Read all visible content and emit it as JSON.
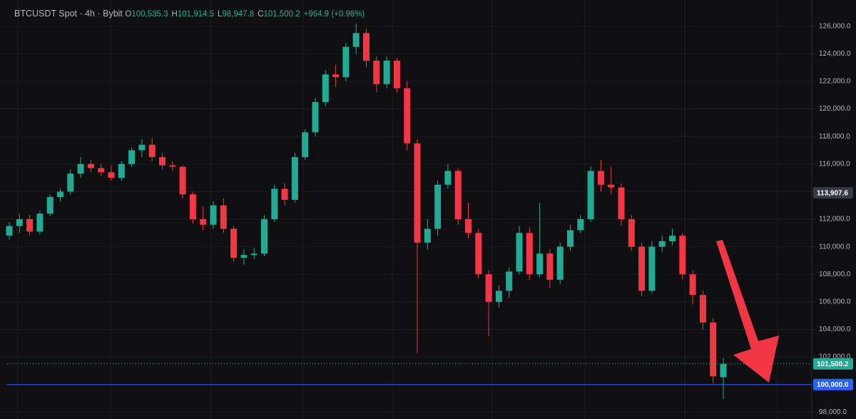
{
  "chart_data": {
    "type": "candlestick",
    "title": "BTCUSDT Spot · 4h · Bybit",
    "legend_values": [
      {
        "label": "O",
        "value": "100,535.3"
      },
      {
        "label": "H",
        "value": "101,914.5"
      },
      {
        "label": "L",
        "value": "98,947.8"
      },
      {
        "label": "C",
        "value": "101,500.2"
      }
    ],
    "change": "+964.9 (+0.96%)",
    "up_color": "#22ab94",
    "down_color": "#f23645",
    "open": [
      110800,
      111500,
      112000,
      111100,
      112400,
      113600,
      114000,
      115300,
      116000,
      115700,
      115400,
      115000,
      116000,
      117000,
      117400,
      116500,
      115900,
      115800,
      113800,
      112000,
      111600,
      113000,
      111300,
      109200,
      109400,
      109500,
      112000,
      114200,
      113400,
      116500,
      118300,
      120500,
      122500,
      122300,
      124500,
      125500,
      123500,
      121800,
      123500,
      121500,
      117500,
      110300,
      111300,
      114500,
      115500,
      112000,
      111000,
      108000,
      106000,
      106800,
      108200,
      111000,
      108000,
      109500,
      107600,
      110000,
      111200,
      112000,
      115500,
      114500,
      114300,
      112000,
      110000,
      106800,
      110000,
      110400,
      110800,
      108000,
      106500,
      104500,
      100535.3
    ],
    "high": [
      111800,
      112400,
      112300,
      112600,
      113800,
      114200,
      115600,
      116500,
      116300,
      116000,
      115900,
      116200,
      117200,
      117800,
      117900,
      116800,
      116200,
      115900,
      114000,
      112900,
      113300,
      113500,
      111500,
      109800,
      109900,
      112300,
      114500,
      114600,
      116800,
      118500,
      120800,
      122800,
      123200,
      124800,
      126200,
      125800,
      123800,
      123800,
      123700,
      122000,
      117800,
      112000,
      114800,
      116000,
      115700,
      113200,
      111300,
      108300,
      107200,
      108500,
      111500,
      111400,
      113200,
      109800,
      110300,
      111600,
      112300,
      115800,
      116300,
      115800,
      114600,
      112300,
      110300,
      110400,
      110800,
      111300,
      111000,
      108300,
      106800,
      104800,
      101914.5
    ],
    "low": [
      110500,
      111000,
      110800,
      110900,
      112200,
      113300,
      113800,
      115000,
      115400,
      115100,
      114800,
      114800,
      115800,
      116500,
      116200,
      115600,
      115500,
      113500,
      111700,
      111200,
      111300,
      111000,
      108900,
      108700,
      109100,
      109300,
      111800,
      113000,
      113200,
      116300,
      118000,
      120200,
      121600,
      122000,
      124000,
      123000,
      121200,
      121500,
      121200,
      117000,
      102300,
      109800,
      110800,
      114200,
      111600,
      110600,
      107700,
      103500,
      105600,
      106300,
      108000,
      107600,
      107800,
      107000,
      107300,
      109700,
      111000,
      111800,
      114000,
      113800,
      111500,
      109700,
      106400,
      106600,
      109600,
      110100,
      107600,
      105800,
      104000,
      100100,
      98947.8
    ],
    "close": [
      111500,
      112000,
      111100,
      112400,
      113600,
      114000,
      115300,
      116000,
      115700,
      115400,
      115000,
      116000,
      117000,
      117400,
      116500,
      115900,
      115800,
      113800,
      112000,
      111600,
      113000,
      111300,
      109200,
      109400,
      109500,
      112000,
      114200,
      113400,
      116500,
      118300,
      120500,
      122500,
      122300,
      124500,
      125500,
      123500,
      121800,
      123500,
      121500,
      117500,
      110300,
      111300,
      114500,
      115500,
      112000,
      111000,
      108000,
      106000,
      106800,
      108200,
      111000,
      108000,
      109500,
      107600,
      110000,
      111200,
      112000,
      115500,
      114500,
      114300,
      112000,
      110000,
      106800,
      110000,
      110400,
      110800,
      108000,
      106500,
      104500,
      100600,
      101500.2
    ],
    "ylim": [
      97500,
      127900
    ],
    "yticks": [
      {
        "value": 98000,
        "label": "98,000.0"
      },
      {
        "value": 100000,
        "label": "100,000.0"
      },
      {
        "value": 102000,
        "label": "102,000.0"
      },
      {
        "value": 104000,
        "label": "104,000.0"
      },
      {
        "value": 106000,
        "label": "106,000.0"
      },
      {
        "value": 108000,
        "label": "108,000.0"
      },
      {
        "value": 110000,
        "label": "110,000.0"
      },
      {
        "value": 112000,
        "label": "112,000.0"
      },
      {
        "value": 114000,
        "label": "114,000.0"
      },
      {
        "value": 116000,
        "label": "116,000.0"
      },
      {
        "value": 118000,
        "label": "118,000.0"
      },
      {
        "value": 120000,
        "label": "120,000.0"
      },
      {
        "value": 122000,
        "label": "122,000.0"
      },
      {
        "value": 124000,
        "label": "124,000.0"
      },
      {
        "value": 126000,
        "label": "126,000.0"
      }
    ],
    "price_labels": [
      {
        "value": 113907.6,
        "label": "113,907.6",
        "color": "#363a45"
      },
      {
        "value": 101500.2,
        "label": "101,500.2",
        "color": "#22ab94",
        "line": "dotted"
      },
      {
        "value": 100000,
        "label": "100,000.0",
        "color": "#2962ff",
        "line": "solid"
      }
    ],
    "grid": true
  }
}
